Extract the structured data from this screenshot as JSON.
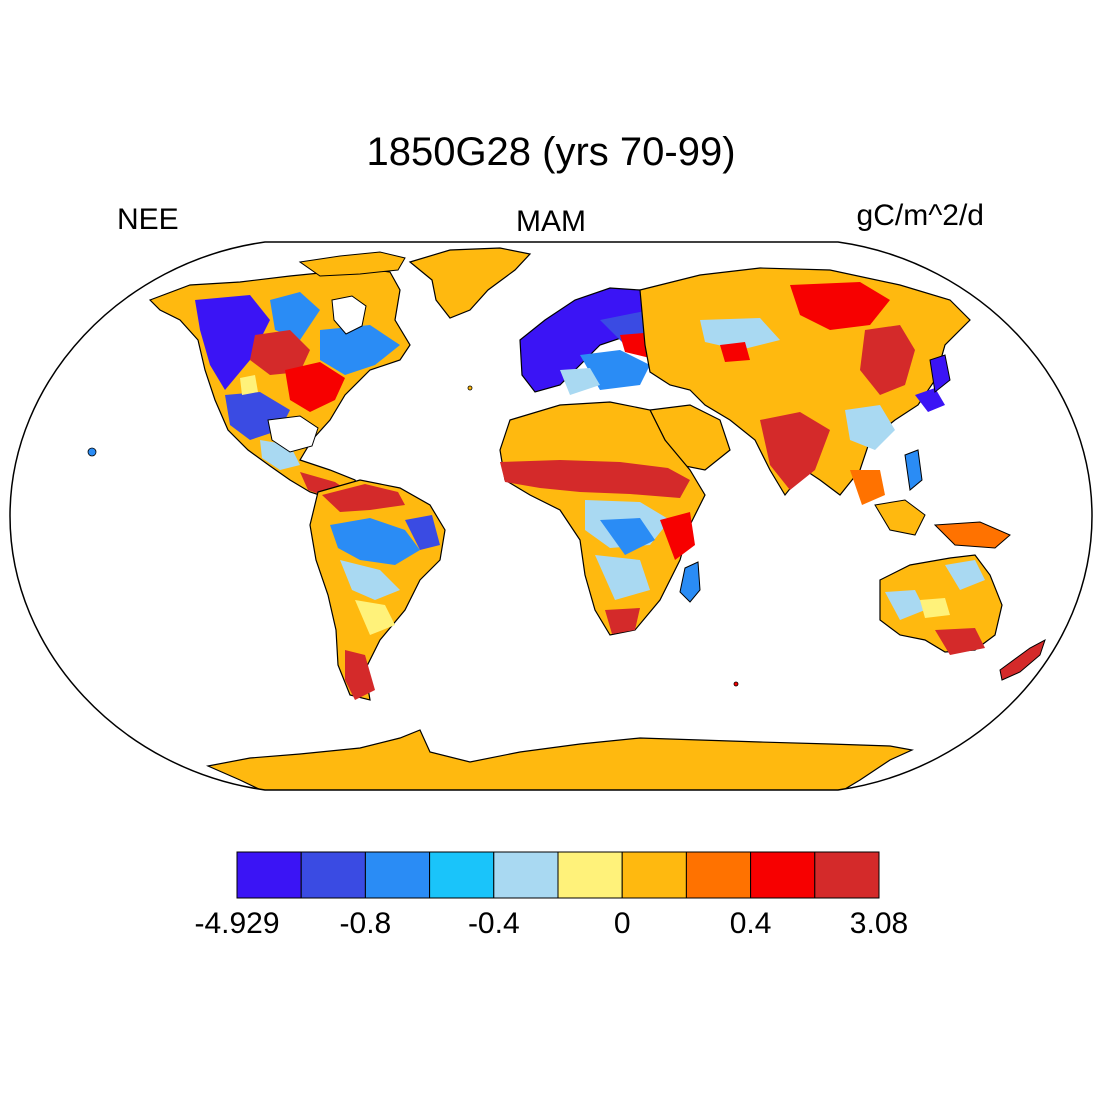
{
  "title": "1850G28 (yrs 70-99)",
  "variable": "NEE",
  "season": "MAM",
  "units": "gC/m^2/d",
  "colorbar": {
    "colors": [
      "#3b14f5",
      "#3a4be3",
      "#2a8cf5",
      "#1ac4fa",
      "#a9d9f2",
      "#fff27a",
      "#ffb90f",
      "#ff7200",
      "#f70000",
      "#d42a2a"
    ],
    "tick_labels": [
      "-4.929",
      "-0.8",
      "-0.4",
      "0",
      "0.4",
      "3.08"
    ]
  },
  "map": {
    "projection": "robinson",
    "ocean_color": "#ffffff",
    "coast_color": "#000000"
  }
}
